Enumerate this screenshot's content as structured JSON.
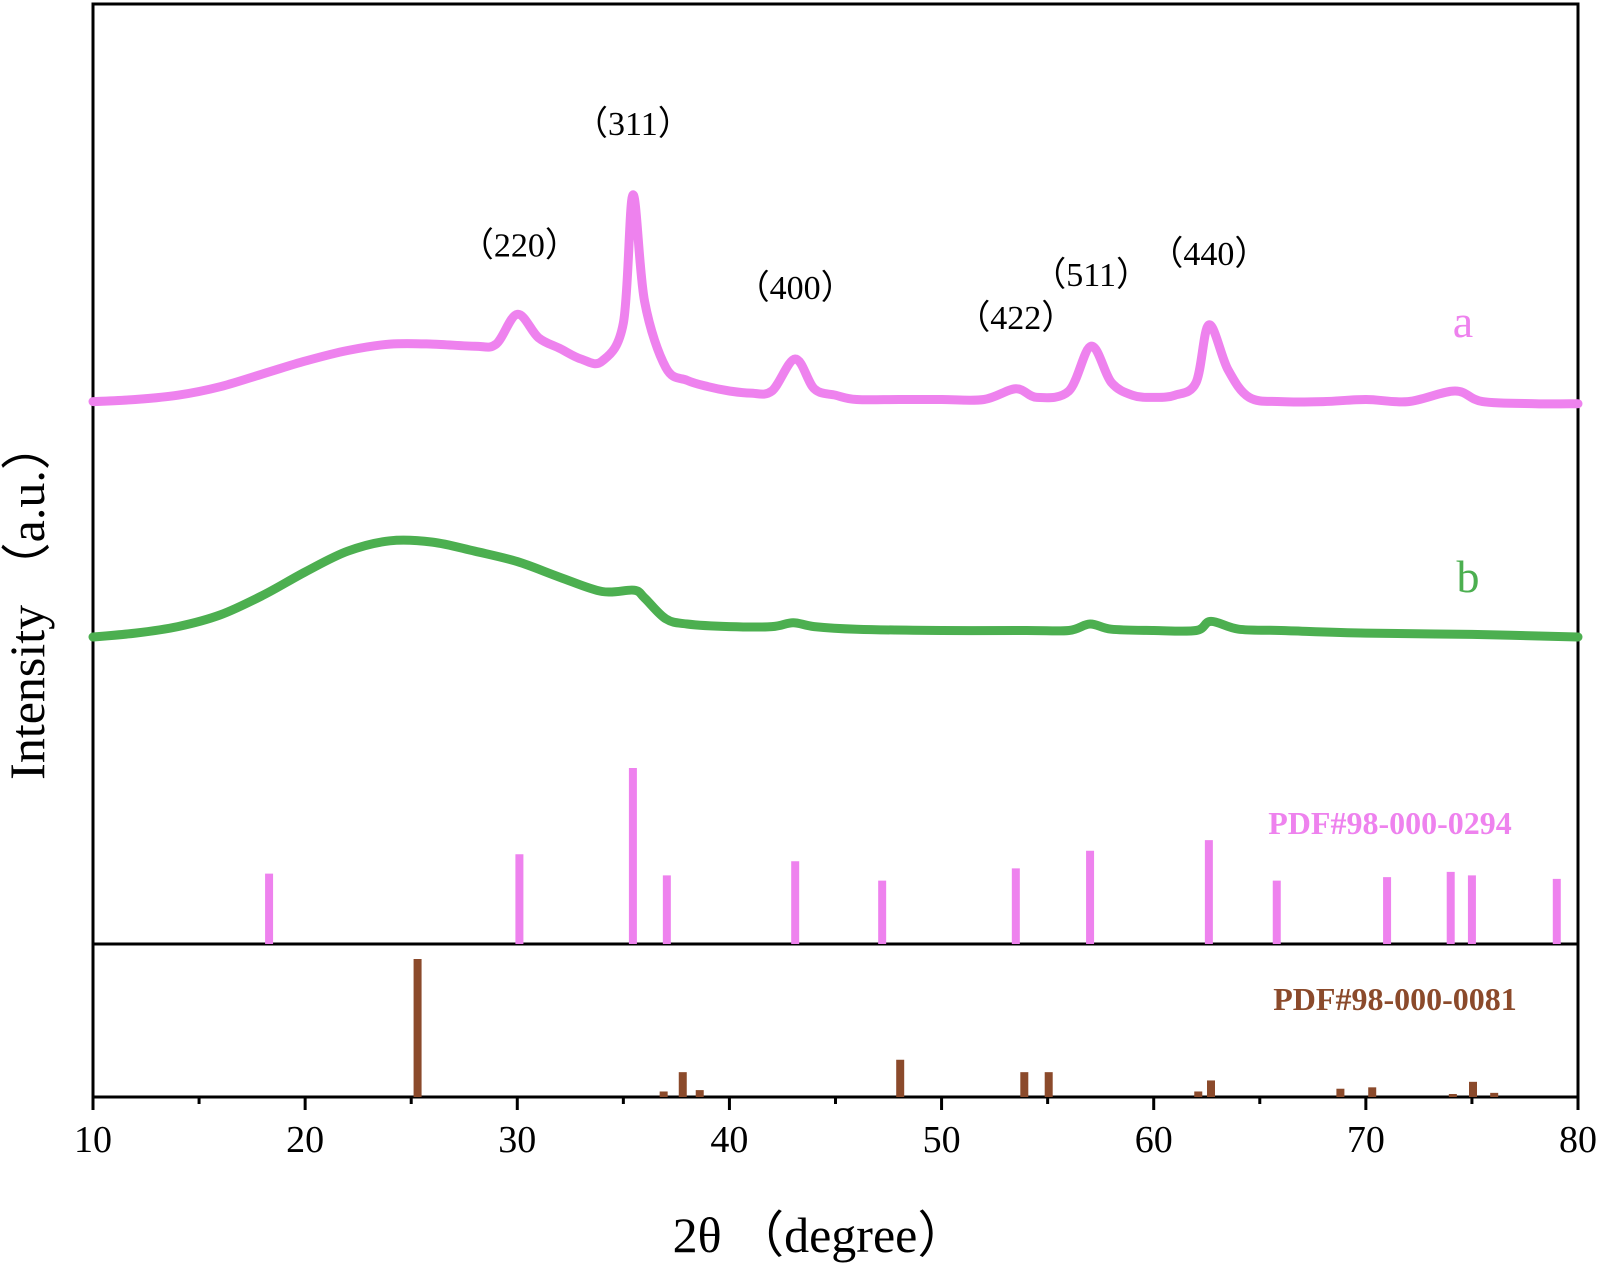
{
  "chart_data": {
    "type": "line",
    "xlabel": "2θ （degree）",
    "ylabel": "Intensity （a.u.）",
    "xlim": [
      10,
      80
    ],
    "x_ticks": [
      10,
      20,
      30,
      40,
      50,
      60,
      70,
      80
    ],
    "x_tick_labels": [
      "10",
      "20",
      "30",
      "40",
      "50",
      "60",
      "70",
      "80"
    ],
    "grid": false,
    "series": [
      {
        "name": "a",
        "color": "#ee82ee",
        "points": [
          [
            10,
            0.03
          ],
          [
            12,
            0.04
          ],
          [
            14,
            0.06
          ],
          [
            16,
            0.1
          ],
          [
            18,
            0.16
          ],
          [
            20,
            0.22
          ],
          [
            22,
            0.27
          ],
          [
            24,
            0.3
          ],
          [
            26,
            0.3
          ],
          [
            28,
            0.29
          ],
          [
            29,
            0.3
          ],
          [
            30,
            0.44
          ],
          [
            31,
            0.33
          ],
          [
            32,
            0.28
          ],
          [
            33,
            0.23
          ],
          [
            34,
            0.22
          ],
          [
            35,
            0.4
          ],
          [
            35.45,
            1.0
          ],
          [
            36,
            0.5
          ],
          [
            37,
            0.19
          ],
          [
            38,
            0.13
          ],
          [
            39,
            0.1
          ],
          [
            40,
            0.08
          ],
          [
            41,
            0.07
          ],
          [
            42,
            0.08
          ],
          [
            43.1,
            0.23
          ],
          [
            44,
            0.09
          ],
          [
            45,
            0.06
          ],
          [
            46,
            0.04
          ],
          [
            48,
            0.04
          ],
          [
            50,
            0.04
          ],
          [
            52,
            0.04
          ],
          [
            53.5,
            0.09
          ],
          [
            54.5,
            0.05
          ],
          [
            56,
            0.08
          ],
          [
            57.05,
            0.29
          ],
          [
            58,
            0.12
          ],
          [
            59,
            0.06
          ],
          [
            60,
            0.05
          ],
          [
            61,
            0.06
          ],
          [
            62,
            0.12
          ],
          [
            62.6,
            0.39
          ],
          [
            63.5,
            0.18
          ],
          [
            64.5,
            0.05
          ],
          [
            66,
            0.03
          ],
          [
            68,
            0.03
          ],
          [
            70,
            0.04
          ],
          [
            72,
            0.03
          ],
          [
            74.2,
            0.08
          ],
          [
            75.5,
            0.03
          ],
          [
            78,
            0.02
          ],
          [
            80,
            0.02
          ]
        ]
      },
      {
        "name": "b",
        "color": "#4caf50",
        "points": [
          [
            10,
            0.0
          ],
          [
            12,
            0.03
          ],
          [
            14,
            0.08
          ],
          [
            16,
            0.17
          ],
          [
            18,
            0.32
          ],
          [
            20,
            0.5
          ],
          [
            22,
            0.66
          ],
          [
            24,
            0.74
          ],
          [
            26,
            0.73
          ],
          [
            28,
            0.66
          ],
          [
            30,
            0.58
          ],
          [
            32,
            0.46
          ],
          [
            34,
            0.35
          ],
          [
            35.5,
            0.36
          ],
          [
            36,
            0.3
          ],
          [
            37,
            0.14
          ],
          [
            38,
            0.1
          ],
          [
            40,
            0.08
          ],
          [
            42,
            0.08
          ],
          [
            43,
            0.11
          ],
          [
            44,
            0.08
          ],
          [
            46,
            0.06
          ],
          [
            50,
            0.05
          ],
          [
            54,
            0.05
          ],
          [
            56,
            0.05
          ],
          [
            57,
            0.1
          ],
          [
            58,
            0.06
          ],
          [
            60,
            0.05
          ],
          [
            62,
            0.05
          ],
          [
            62.7,
            0.12
          ],
          [
            64,
            0.06
          ],
          [
            66,
            0.05
          ],
          [
            70,
            0.03
          ],
          [
            75,
            0.02
          ],
          [
            80,
            0.0
          ]
        ]
      }
    ],
    "curve_labels": [
      {
        "series": "a",
        "text": "a",
        "color": "#ee82ee"
      },
      {
        "series": "b",
        "text": "b",
        "color": "#4caf50"
      }
    ],
    "peak_labels": [
      {
        "text": "（220）",
        "x": 30.1
      },
      {
        "text": "（311）",
        "x": 35.45
      },
      {
        "text": "（400）",
        "x": 43.1
      },
      {
        "text": "（422）",
        "x": 53.5
      },
      {
        "text": "（511）",
        "x": 57.05
      },
      {
        "text": "（440）",
        "x": 62.6
      }
    ],
    "reference_patterns": [
      {
        "label": "PDF#98-000-0294",
        "color": "#ee82ee",
        "lines": [
          [
            18.3,
            0.4
          ],
          [
            30.1,
            0.51
          ],
          [
            35.45,
            1.0
          ],
          [
            37.05,
            0.39
          ],
          [
            43.1,
            0.47
          ],
          [
            47.2,
            0.36
          ],
          [
            53.5,
            0.43
          ],
          [
            57.0,
            0.53
          ],
          [
            62.6,
            0.59
          ],
          [
            65.8,
            0.36
          ],
          [
            71.0,
            0.38
          ],
          [
            74.0,
            0.41
          ],
          [
            75.0,
            0.39
          ],
          [
            79.0,
            0.37
          ]
        ]
      },
      {
        "label": "PDF#98-000-0081",
        "color": "#8b4a2b",
        "lines": [
          [
            25.3,
            1.0
          ],
          [
            36.9,
            0.04
          ],
          [
            37.8,
            0.18
          ],
          [
            38.6,
            0.05
          ],
          [
            48.05,
            0.27
          ],
          [
            53.9,
            0.18
          ],
          [
            55.05,
            0.18
          ],
          [
            62.1,
            0.04
          ],
          [
            62.7,
            0.12
          ],
          [
            68.8,
            0.06
          ],
          [
            70.3,
            0.07
          ],
          [
            74.1,
            0.01
          ],
          [
            75.05,
            0.11
          ],
          [
            76.05,
            0.03
          ]
        ]
      }
    ]
  }
}
